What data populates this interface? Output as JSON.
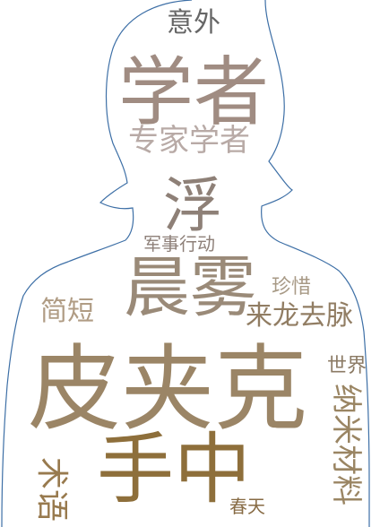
{
  "words": [
    {
      "text": "意外",
      "color": "#666666"
    },
    {
      "text": "学者",
      "color": "#a08c82"
    },
    {
      "text": "专家学者",
      "color": "#b8aaa6"
    },
    {
      "text": "浮",
      "color": "#8e8077"
    },
    {
      "text": "军事行动",
      "color": "#8e8079"
    },
    {
      "text": "晨雾",
      "color": "#9a8a78"
    },
    {
      "text": "珍惜",
      "color": "#a89a86"
    },
    {
      "text": "简短",
      "color": "#b09c84"
    },
    {
      "text": "来龙去脉",
      "color": "#917d63"
    },
    {
      "text": "世界",
      "color": "#8b7a64"
    },
    {
      "text": "皮夹克",
      "color": "#9b8566"
    },
    {
      "text": "纳米材料",
      "color": "#9a8563"
    },
    {
      "text": "手中",
      "color": "#8e6f3b"
    },
    {
      "text": "术语",
      "color": "#987a4e"
    },
    {
      "text": "春天",
      "color": "#876b44"
    }
  ],
  "colors": {
    "silhouette_outline": "#3d6fa6"
  }
}
